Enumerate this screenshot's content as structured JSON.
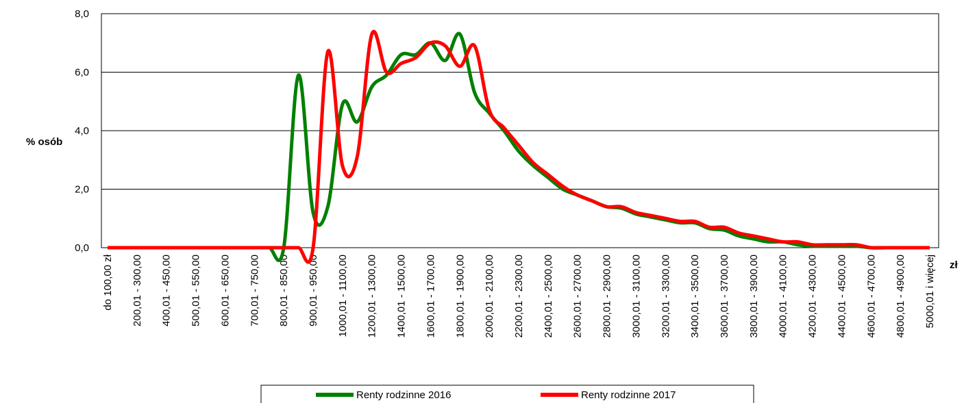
{
  "chart_data": {
    "type": "line",
    "y_label": "% osób",
    "x_label": "zł",
    "categories": [
      "do 100,00 zł",
      null,
      "200,01 - 300,00",
      null,
      "400,01 - 450,00",
      null,
      "500,01 - 550,00",
      null,
      "600,01 - 650,00",
      null,
      "700,01 - 750,00",
      null,
      "800,01 - 850,00",
      null,
      "900,01 - 950,00",
      null,
      "1000,01 - 1100,00",
      null,
      "1200,01 - 1300,00",
      null,
      "1400,01 - 1500,00",
      null,
      "1600,01 - 1700,00",
      null,
      "1800,01 - 1900,00",
      null,
      "2000,01 - 2100,00",
      null,
      "2200,01 - 2300,00",
      null,
      "2400,01 - 2500,00",
      null,
      "2600,01 - 2700,00",
      null,
      "2800,01 - 2900,00",
      null,
      "3000,01 - 3100,00",
      null,
      "3200,01 - 3300,00",
      null,
      "3400,01 - 3500,00",
      null,
      "3600,01 - 3700,00",
      null,
      "3800,01 - 3900,00",
      null,
      "4000,01 - 4100,00",
      null,
      "4200,01 - 4300,00",
      null,
      "4400,01 - 4500,00",
      null,
      "4600,01 - 4700,00",
      null,
      "4800,01 - 4900,00",
      null,
      "5000,01 i więcej"
    ],
    "series": [
      {
        "name": "Renty rodzinne 2016",
        "color": "#008000",
        "values": [
          0,
          0,
          0,
          0,
          0,
          0,
          0,
          0,
          0,
          0,
          0,
          0,
          0,
          5.9,
          1.2,
          1.4,
          4.9,
          4.3,
          5.5,
          5.9,
          6.6,
          6.6,
          7.0,
          6.4,
          7.3,
          5.3,
          4.6,
          4.0,
          3.3,
          2.8,
          2.4,
          2.0,
          1.8,
          1.6,
          1.4,
          1.35,
          1.15,
          1.05,
          0.95,
          0.85,
          0.85,
          0.65,
          0.6,
          0.4,
          0.3,
          0.2,
          0.2,
          0.1,
          0.05,
          0.05,
          0.05,
          0.05,
          0,
          0,
          0,
          0,
          0
        ]
      },
      {
        "name": "Renty rodzinne 2017",
        "color": "#ff0000",
        "values": [
          0,
          0,
          0,
          0,
          0,
          0,
          0,
          0,
          0,
          0,
          0,
          0,
          0,
          0,
          0,
          6.7,
          2.8,
          3.1,
          7.3,
          6.0,
          6.3,
          6.5,
          7.0,
          6.9,
          6.2,
          6.9,
          4.7,
          4.1,
          3.5,
          2.9,
          2.5,
          2.1,
          1.8,
          1.6,
          1.4,
          1.4,
          1.2,
          1.1,
          1.0,
          0.9,
          0.9,
          0.7,
          0.7,
          0.5,
          0.4,
          0.3,
          0.2,
          0.2,
          0.1,
          0.1,
          0.1,
          0.1,
          0,
          0,
          0,
          0,
          0
        ]
      }
    ],
    "ylim": [
      0,
      8
    ],
    "yticks": [
      {
        "value": 0,
        "label": "0,0"
      },
      {
        "value": 2,
        "label": "2,0"
      },
      {
        "value": 4,
        "label": "4,0"
      },
      {
        "value": 6,
        "label": "6,0"
      },
      {
        "value": 8,
        "label": "8,0"
      }
    ],
    "grid": true,
    "legend": "bottom"
  }
}
